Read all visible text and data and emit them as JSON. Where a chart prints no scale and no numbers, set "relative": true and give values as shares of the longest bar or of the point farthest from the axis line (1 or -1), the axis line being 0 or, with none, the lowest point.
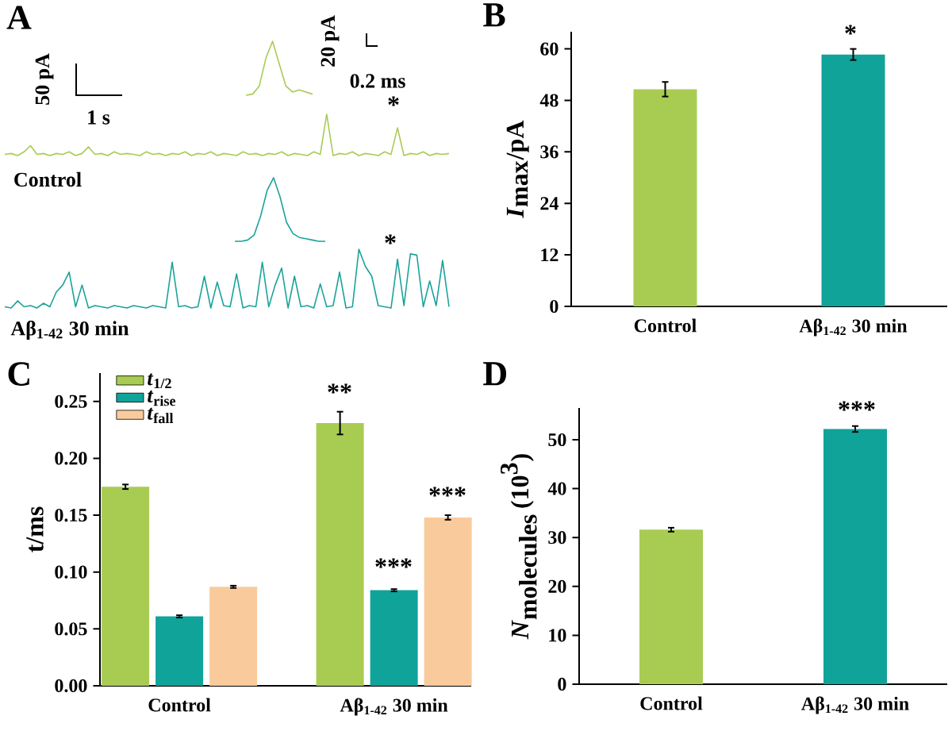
{
  "chart_data": [
    {
      "type": "line",
      "relative": true,
      "annotations": [
        "50 pA",
        "1 s",
        "20 pA",
        "0.2 ms",
        "*",
        "Control",
        "A"
      ],
      "categories": [
        null,
        null,
        null,
        null,
        null,
        null,
        null,
        null,
        null,
        null,
        null,
        null,
        null,
        null,
        null,
        null,
        null,
        null,
        null,
        null,
        null,
        null,
        null,
        null,
        null,
        null,
        null,
        null,
        null,
        null,
        null,
        null,
        null,
        null,
        null,
        null,
        null,
        null,
        null,
        null,
        null,
        null,
        null,
        null,
        null,
        null,
        null,
        null,
        null,
        null,
        null,
        null,
        null,
        null,
        null,
        null,
        null,
        null,
        null,
        null,
        null,
        null,
        null,
        null,
        null,
        null,
        null,
        null,
        null,
        null
      ],
      "series": [
        {
          "color": "#a8cc52",
          "values": [
            0.03,
            0.05,
            0,
            0.09,
            0.24,
            0.03,
            0.05,
            0,
            0.05,
            0.03,
            0.09,
            0,
            0.05,
            0.21,
            0.03,
            0.05,
            0,
            0.09,
            0.03,
            0.05,
            0.03,
            0,
            0.09,
            0.03,
            0.05,
            0,
            0.05,
            0.03,
            0.09,
            0,
            0.05,
            0.03,
            0.09,
            0,
            0.05,
            0.03,
            0,
            0.09,
            0.03,
            0.05,
            0,
            0.05,
            0.03,
            0.09,
            0,
            0.05,
            0.03,
            0,
            0.09,
            0.03,
            1,
            0,
            0.05,
            0.03,
            0.09,
            0,
            0.05,
            0.03,
            0,
            0.09,
            0.03,
            0.67,
            0,
            0.05,
            0.03,
            0.09,
            0,
            0.05,
            0.03,
            0.05
          ]
        }
      ]
    },
    {
      "type": "line",
      "relative": true,
      "categories": [
        null,
        null,
        null,
        null,
        null,
        null,
        null,
        null,
        null,
        null,
        null
      ],
      "series": [
        {
          "color": "#a8cc52",
          "values": [
            0,
            0.02,
            0.17,
            0.69,
            1,
            0.58,
            0.17,
            0.06,
            0.1,
            0.06,
            0.02
          ]
        }
      ]
    },
    {
      "type": "line",
      "relative": true,
      "annotations": [
        "*",
        "Aβ$_{1-42}$ 30 min"
      ],
      "categories": [
        null,
        null,
        null,
        null,
        null,
        null,
        null,
        null,
        null,
        null,
        null,
        null,
        null,
        null,
        null,
        null,
        null,
        null,
        null,
        null,
        null,
        null,
        null,
        null,
        null,
        null,
        null,
        null,
        null,
        null,
        null,
        null,
        null,
        null,
        null,
        null,
        null,
        null,
        null,
        null,
        null,
        null,
        null,
        null,
        null,
        null,
        null,
        null,
        null,
        null,
        null,
        null,
        null,
        null,
        null,
        null,
        null,
        null,
        null,
        null,
        null,
        null,
        null,
        null,
        null,
        null,
        null,
        null,
        null,
        null
      ],
      "series": [
        {
          "color": "#1aa39a",
          "values": [
            0.02,
            0,
            0.12,
            0.02,
            0.04,
            0,
            0.08,
            0.02,
            0.27,
            0.39,
            0.61,
            0.02,
            0.39,
            0,
            0.04,
            0.02,
            0,
            0.04,
            0.02,
            0,
            0.04,
            0.02,
            0,
            0.04,
            0.02,
            0,
            0.78,
            0.02,
            0.04,
            0,
            0.02,
            0.54,
            0,
            0.44,
            0.04,
            0.02,
            0.58,
            0,
            0.04,
            0.02,
            0.78,
            0.02,
            0.39,
            0.68,
            0,
            0.54,
            0.02,
            0.04,
            0,
            0.41,
            0.02,
            0.04,
            0.61,
            0,
            0.02,
            1,
            0.71,
            0.54,
            0.04,
            0.02,
            0,
            0.83,
            0.04,
            0.92,
            0.9,
            0.02,
            0.46,
            0.04,
            0.81,
            0.02
          ]
        }
      ]
    },
    {
      "type": "line",
      "relative": true,
      "categories": [
        null,
        null,
        null,
        null,
        null,
        null,
        null,
        null,
        null,
        null,
        null,
        null,
        null,
        null,
        null
      ],
      "series": [
        {
          "color": "#1aa39a",
          "values": [
            0,
            0,
            0.02,
            0.1,
            0.4,
            0.8,
            1,
            0.7,
            0.3,
            0.12,
            0.06,
            0.04,
            0.02,
            0,
            0
          ]
        }
      ]
    },
    {
      "type": "bar",
      "title": "B",
      "ylabel": "\\textbf{\\textit{I}}_{\\textbf{max}}\\textbf{/pA}",
      "categories": [
        "Control",
        "Aβ$_{1-42}$ 30 min"
      ],
      "values": [
        50.6,
        58.7
      ],
      "errors": [
        1.7,
        1.3
      ],
      "colors": [
        "#a8cc52",
        "#0fa39a"
      ],
      "ylim": [
        0,
        64
      ],
      "yticks": [
        0,
        12,
        24,
        36,
        48,
        60
      ],
      "annotations": [
        "*"
      ]
    },
    {
      "type": "bar",
      "title": "C",
      "ylabel": "\\textbf{t/ms}",
      "categories": [
        "Control",
        "Aβ$_{1-42}$ 30 min"
      ],
      "legend": "top left",
      "series": [
        {
          "name": "*t*$_{1/2}$",
          "color": "#a8cc52",
          "values": [
            0.175,
            0.231
          ],
          "errors": [
            0.002,
            0.01
          ]
        },
        {
          "name": "*t*$_{rise}$",
          "color": "#0fa39a",
          "values": [
            0.061,
            0.084
          ],
          "errors": [
            0.001,
            0.001
          ]
        },
        {
          "name": "*t*$_{fall}$",
          "color": "#f9cb9c",
          "values": [
            0.087,
            0.148
          ],
          "errors": [
            0.001,
            0.002
          ]
        }
      ],
      "ylim": [
        0,
        0.275
      ],
      "yticks": [
        {
          "value": 0,
          "label": "0.00"
        },
        {
          "value": 0.05,
          "label": "0.05"
        },
        {
          "value": 0.1,
          "label": "0.10"
        },
        {
          "value": 0.15,
          "label": "0.15"
        },
        {
          "value": 0.2,
          "label": "0.20"
        },
        {
          "value": 0.25,
          "label": "0.25"
        }
      ],
      "annotations": [
        "**",
        "***",
        "***"
      ]
    },
    {
      "type": "bar",
      "title": "D",
      "ylabel": "\\textbf{\\textit{N}}_{\\textbf{molecules}}\\,\\textbf{(10}^{\\textbf{3}}\\textbf{)}",
      "categories": [
        "Control",
        "Aβ$_{1-42}$ 30 min"
      ],
      "values": [
        31.6,
        52.2
      ],
      "errors": [
        0.4,
        0.6
      ],
      "colors": [
        "#a8cc52",
        "#0fa39a"
      ],
      "ylim": [
        0,
        56.5
      ],
      "yticks": [
        0,
        10,
        20,
        30,
        40,
        50
      ],
      "annotations": [
        "***"
      ]
    }
  ]
}
